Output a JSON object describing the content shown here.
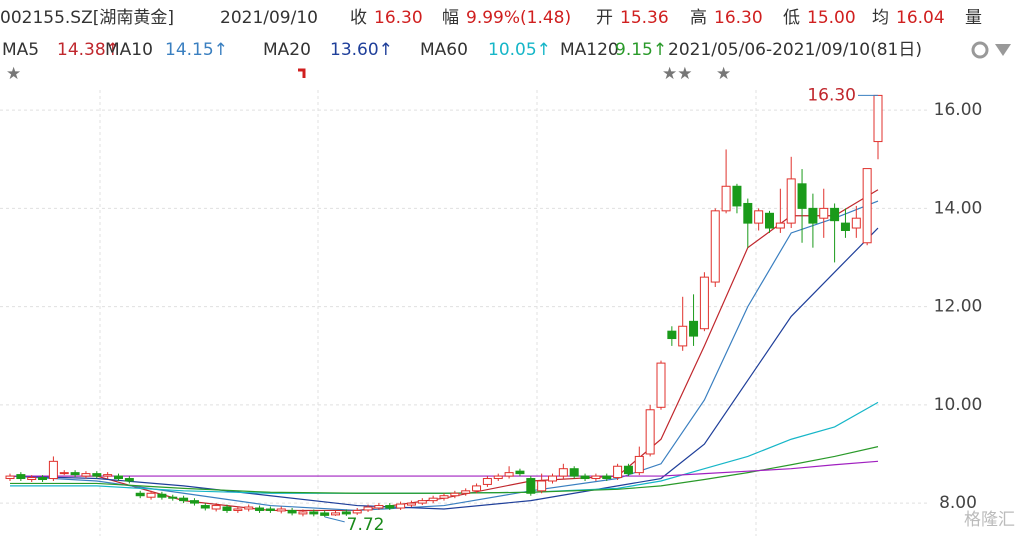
{
  "header": {
    "code": "002155.SZ[湖南黄金]",
    "date": "2021/09/10",
    "close_label": "收",
    "close": "16.30",
    "change_label": "幅",
    "change": "9.99%(1.48)",
    "open_label": "开",
    "open": "15.36",
    "high_label": "高",
    "high": "16.30",
    "low_label": "低",
    "low": "15.00",
    "avg_label": "均",
    "avg": "16.04",
    "volume_label": "量",
    "range": "2021/05/06-2021/09/10(81日)"
  },
  "chart_data": {
    "type": "candlestick",
    "open": [
      8.5,
      8.58,
      8.48,
      8.52,
      8.5,
      8.62,
      8.62,
      8.55,
      8.6,
      8.55,
      8.55,
      8.5,
      8.2,
      8.12,
      8.18,
      8.12,
      8.1,
      8.05,
      7.95,
      7.88,
      7.92,
      7.85,
      7.88,
      7.9,
      7.88,
      7.84,
      7.85,
      7.78,
      7.82,
      7.8,
      7.76,
      7.82,
      7.8,
      7.86,
      7.9,
      7.95,
      7.9,
      7.96,
      8.0,
      8.05,
      8.1,
      8.15,
      8.2,
      8.25,
      8.38,
      8.5,
      8.55,
      8.65,
      8.5,
      8.25,
      8.45,
      8.55,
      8.7,
      8.55,
      8.5,
      8.55,
      8.52,
      8.75,
      8.62,
      9.0,
      9.95,
      11.5,
      11.2,
      11.7,
      11.55,
      12.5,
      13.95,
      14.45,
      14.1,
      13.7,
      13.9,
      13.6,
      13.7,
      14.5,
      14.0,
      13.8,
      14.0,
      13.7,
      13.6,
      13.3,
      15.36
    ],
    "high": [
      8.6,
      8.63,
      8.57,
      8.57,
      8.95,
      8.67,
      8.67,
      8.65,
      8.65,
      8.63,
      8.6,
      8.55,
      8.25,
      8.25,
      8.23,
      8.17,
      8.15,
      8.1,
      8.0,
      8.0,
      7.97,
      7.93,
      7.97,
      7.95,
      7.93,
      7.93,
      7.9,
      7.87,
      7.87,
      7.85,
      7.85,
      7.87,
      7.9,
      7.97,
      8.0,
      8.0,
      8.03,
      8.05,
      8.1,
      8.15,
      8.2,
      8.25,
      8.3,
      8.4,
      8.55,
      8.6,
      8.75,
      8.7,
      8.55,
      8.6,
      8.6,
      8.8,
      8.75,
      8.6,
      8.6,
      8.6,
      8.8,
      8.8,
      9.15,
      10.0,
      10.9,
      11.6,
      12.2,
      12.25,
      12.7,
      14.0,
      15.2,
      14.5,
      14.2,
      14.0,
      13.95,
      14.4,
      15.05,
      14.8,
      14.3,
      14.4,
      14.1,
      14.0,
      14.05,
      14.81,
      16.3
    ],
    "low": [
      8.45,
      8.45,
      8.43,
      8.43,
      8.45,
      8.57,
      8.53,
      8.5,
      8.5,
      8.5,
      8.45,
      8.4,
      8.1,
      8.07,
      8.07,
      8.05,
      8.0,
      7.95,
      7.85,
      7.83,
      7.8,
      7.8,
      7.83,
      7.8,
      7.8,
      7.79,
      7.75,
      7.73,
      7.73,
      7.72,
      7.74,
      7.74,
      7.76,
      7.82,
      7.86,
      7.86,
      7.86,
      7.92,
      7.96,
      8.0,
      8.05,
      8.1,
      8.15,
      8.2,
      8.33,
      8.45,
      8.5,
      8.55,
      8.15,
      8.2,
      8.4,
      8.5,
      8.5,
      8.45,
      8.45,
      8.45,
      8.47,
      8.55,
      8.57,
      8.95,
      9.9,
      11.2,
      11.1,
      11.2,
      11.5,
      12.4,
      13.9,
      13.9,
      13.2,
      13.55,
      13.5,
      13.5,
      13.6,
      13.3,
      13.2,
      13.4,
      12.9,
      13.4,
      13.4,
      13.25,
      15.0
    ],
    "close": [
      8.55,
      8.5,
      8.52,
      8.48,
      8.85,
      8.62,
      8.58,
      8.6,
      8.55,
      8.58,
      8.5,
      8.45,
      8.15,
      8.2,
      8.12,
      8.1,
      8.05,
      8.0,
      7.9,
      7.95,
      7.85,
      7.88,
      7.92,
      7.85,
      7.85,
      7.88,
      7.8,
      7.82,
      7.78,
      7.75,
      7.8,
      7.78,
      7.85,
      7.92,
      7.95,
      7.9,
      7.98,
      8.0,
      8.05,
      8.1,
      8.15,
      8.2,
      8.25,
      8.35,
      8.5,
      8.55,
      8.62,
      8.6,
      8.2,
      8.45,
      8.55,
      8.7,
      8.55,
      8.5,
      8.55,
      8.5,
      8.75,
      8.6,
      8.95,
      9.9,
      10.85,
      11.35,
      11.6,
      11.4,
      12.6,
      13.95,
      14.45,
      14.05,
      13.7,
      13.95,
      13.6,
      13.7,
      14.6,
      14.0,
      13.7,
      14.0,
      13.75,
      13.55,
      13.8,
      14.81,
      16.3
    ],
    "up_color": "#e0312c",
    "down_color": "#1a9a1a",
    "series": [
      {
        "name": "MA5",
        "value_label": "14.38↑",
        "color": "#c0272d",
        "x": [
          0,
          8,
          16,
          24,
          32,
          40,
          48,
          56,
          60,
          64,
          68,
          72,
          76,
          80
        ],
        "values": [
          8.55,
          8.55,
          8.05,
          7.85,
          7.85,
          8.1,
          8.45,
          8.55,
          9.3,
          11.2,
          13.2,
          13.85,
          13.85,
          14.38
        ]
      },
      {
        "name": "MA10",
        "value_label": "14.15↑",
        "color": "#3a7fc0",
        "x": [
          0,
          8,
          16,
          24,
          32,
          40,
          48,
          56,
          60,
          64,
          68,
          72,
          76,
          80
        ],
        "values": [
          8.55,
          8.45,
          8.2,
          7.95,
          7.85,
          7.95,
          8.25,
          8.5,
          8.8,
          10.1,
          12.0,
          13.5,
          13.8,
          14.15
        ]
      },
      {
        "name": "MA20",
        "value_label": "13.60↑",
        "color": "#1f3f9a",
        "x": [
          0,
          8,
          16,
          24,
          32,
          40,
          48,
          56,
          60,
          64,
          68,
          72,
          76,
          80
        ],
        "values": [
          8.55,
          8.5,
          8.35,
          8.15,
          7.95,
          7.88,
          8.05,
          8.35,
          8.5,
          9.2,
          10.5,
          11.8,
          12.7,
          13.6
        ]
      },
      {
        "name": "MA60",
        "value_label": "10.05↑",
        "color": "#16b6c8",
        "x": [
          0,
          8,
          16,
          24,
          32,
          40,
          48,
          56,
          60,
          64,
          68,
          72,
          76,
          80
        ],
        "values": [
          8.35,
          8.35,
          8.25,
          8.2,
          8.2,
          8.2,
          8.22,
          8.3,
          8.45,
          8.7,
          8.95,
          9.3,
          9.55,
          10.05
        ]
      },
      {
        "name": "MA120",
        "value_label": "9.15↑",
        "color": "#2a9a2a",
        "x": [
          0,
          8,
          16,
          24,
          32,
          40,
          48,
          56,
          60,
          64,
          68,
          72,
          76,
          80
        ],
        "values": [
          8.4,
          8.4,
          8.3,
          8.22,
          8.2,
          8.2,
          8.22,
          8.28,
          8.35,
          8.48,
          8.62,
          8.78,
          8.95,
          9.15
        ]
      },
      {
        "color": "#a020c0",
        "x": [
          0,
          8,
          16,
          24,
          32,
          40,
          48,
          56,
          60,
          64,
          68,
          72,
          76,
          80
        ],
        "values": [
          8.55,
          8.55,
          8.55,
          8.55,
          8.55,
          8.55,
          8.55,
          8.55,
          8.55,
          8.6,
          8.65,
          8.7,
          8.78,
          8.85
        ]
      }
    ],
    "ylim": [
      7.33,
      16.41
    ],
    "yticks": [
      {
        "value": 8,
        "label": "8.00"
      },
      {
        "value": 10,
        "label": "10.00"
      },
      {
        "value": 12,
        "label": "12.00"
      },
      {
        "value": 14,
        "label": "14.00"
      },
      {
        "value": 16,
        "label": "16.00"
      }
    ],
    "max_mark": {
      "index": 80,
      "value": 16.3,
      "label": "16.30"
    },
    "min_mark": {
      "index": 29,
      "value": 7.72,
      "label": "7.72"
    },
    "watermark": "格隆汇"
  }
}
